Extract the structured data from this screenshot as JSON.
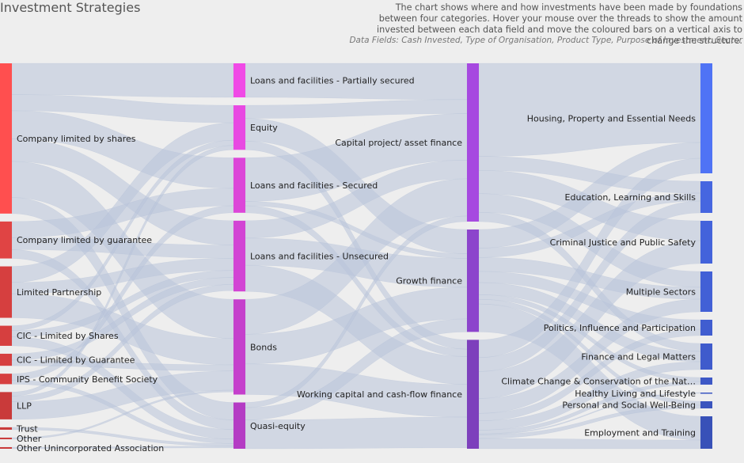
{
  "title": "Investment Strategies",
  "description": "The chart shows where and how investments have been made by foundations between four categories. Hover your mouse over the threads to show the amount invested between each data field and move the coloured bars on a vertical axis to change the structure.",
  "data_fields": "Data Fields: Cash Invested, Type of Organisation, Product Type, Purpose of Investment, Sector",
  "chart_data": {
    "type": "sankey",
    "columns": [
      {
        "name": "Type of Organisation",
        "nodes": [
          {
            "label": "Company limited by shares",
            "value": 187,
            "color": "#ff4f4f"
          },
          {
            "label": "Company limited by guarantee",
            "value": 46,
            "color": "#e04444"
          },
          {
            "label": "Limited Partnership",
            "value": 64,
            "color": "#d63f3f"
          },
          {
            "label": "CIC - Limited by Shares",
            "value": 25,
            "color": "#d63f3f"
          },
          {
            "label": "CIC - Limited by Guarantee",
            "value": 15,
            "color": "#d63f3f"
          },
          {
            "label": "IPS - Community Benefit Society",
            "value": 13,
            "color": "#d63f3f"
          },
          {
            "label": "LLP",
            "value": 34,
            "color": "#c93a3a"
          },
          {
            "label": "Trust",
            "value": 3,
            "color": "#c93a3a"
          },
          {
            "label": "Other",
            "value": 2,
            "color": "#c93a3a"
          },
          {
            "label": "Other Unincorporated Association",
            "value": 2,
            "color": "#c93a3a"
          }
        ]
      },
      {
        "name": "Product Type",
        "nodes": [
          {
            "label": "Loans and facilities - Partially secured",
            "value": 39,
            "color": "#f04ae6"
          },
          {
            "label": "Equity",
            "value": 51,
            "color": "#e849e2"
          },
          {
            "label": "Loans and facilities - Secured",
            "value": 63,
            "color": "#dc46d8"
          },
          {
            "label": "Loans and facilities - Unsecured",
            "value": 81,
            "color": "#d244d4"
          },
          {
            "label": "Bonds",
            "value": 109,
            "color": "#c540cc"
          },
          {
            "label": "Quasi-equity",
            "value": 53,
            "color": "#b43cc4"
          }
        ]
      },
      {
        "name": "Purpose of Investment",
        "nodes": [
          {
            "label": "Capital project/ asset finance",
            "value": 170,
            "color": "#a649e0"
          },
          {
            "label": "Growth finance",
            "value": 110,
            "color": "#8c44cc"
          },
          {
            "label": "Working capital and cash-flow finance",
            "value": 117,
            "color": "#7d40bc"
          }
        ]
      },
      {
        "name": "Sector",
        "nodes": [
          {
            "label": "Housing, Property and Essential Needs",
            "value": 139,
            "color": "#4f73f5"
          },
          {
            "label": "Education, Learning and Skills",
            "value": 40,
            "color": "#4666e0"
          },
          {
            "label": "Criminal Justice and Public Safety",
            "value": 54,
            "color": "#4363db"
          },
          {
            "label": "Multiple Sectors",
            "value": 51,
            "color": "#4260d6"
          },
          {
            "label": "Politics, Influence and Participation",
            "value": 20,
            "color": "#405dd0"
          },
          {
            "label": "Finance and Legal Matters",
            "value": 33,
            "color": "#3f5bcc"
          },
          {
            "label": "Climate Change & Conservation of the Nat…",
            "value": 9,
            "color": "#3d58c6"
          },
          {
            "label": "Healthy Living and Lifestyle",
            "value": 1,
            "color": "#3b56c2"
          },
          {
            "label": "Personal and Social Well-Being",
            "value": 9,
            "color": "#3a54be"
          },
          {
            "label": "Employment and Training",
            "value": 41,
            "color": "#3851b8"
          }
        ]
      }
    ],
    "links": [
      {
        "source": [
          0,
          0
        ],
        "target": [
          1,
          0
        ],
        "value": 39
      },
      {
        "source": [
          0,
          0
        ],
        "target": [
          1,
          1
        ],
        "value": 20
      },
      {
        "source": [
          0,
          0
        ],
        "target": [
          1,
          2
        ],
        "value": 35
      },
      {
        "source": [
          0,
          0
        ],
        "target": [
          1,
          3
        ],
        "value": 28
      },
      {
        "source": [
          0,
          0
        ],
        "target": [
          1,
          4
        ],
        "value": 45
      },
      {
        "source": [
          0,
          0
        ],
        "target": [
          1,
          5
        ],
        "value": 20
      },
      {
        "source": [
          0,
          1
        ],
        "target": [
          1,
          2
        ],
        "value": 20
      },
      {
        "source": [
          0,
          1
        ],
        "target": [
          1,
          3
        ],
        "value": 15
      },
      {
        "source": [
          0,
          1
        ],
        "target": [
          1,
          5
        ],
        "value": 11
      },
      {
        "source": [
          0,
          2
        ],
        "target": [
          1,
          1
        ],
        "value": 20
      },
      {
        "source": [
          0,
          2
        ],
        "target": [
          1,
          3
        ],
        "value": 14
      },
      {
        "source": [
          0,
          2
        ],
        "target": [
          1,
          4
        ],
        "value": 30
      },
      {
        "source": [
          0,
          3
        ],
        "target": [
          1,
          1
        ],
        "value": 6
      },
      {
        "source": [
          0,
          3
        ],
        "target": [
          1,
          3
        ],
        "value": 8
      },
      {
        "source": [
          0,
          3
        ],
        "target": [
          1,
          5
        ],
        "value": 11
      },
      {
        "source": [
          0,
          4
        ],
        "target": [
          1,
          3
        ],
        "value": 8
      },
      {
        "source": [
          0,
          4
        ],
        "target": [
          1,
          4
        ],
        "value": 7
      },
      {
        "source": [
          0,
          5
        ],
        "target": [
          1,
          2
        ],
        "value": 8
      },
      {
        "source": [
          0,
          5
        ],
        "target": [
          1,
          5
        ],
        "value": 5
      },
      {
        "source": [
          0,
          6
        ],
        "target": [
          1,
          1
        ],
        "value": 5
      },
      {
        "source": [
          0,
          6
        ],
        "target": [
          1,
          3
        ],
        "value": 7
      },
      {
        "source": [
          0,
          6
        ],
        "target": [
          1,
          4
        ],
        "value": 22
      },
      {
        "source": [
          0,
          7
        ],
        "target": [
          1,
          5
        ],
        "value": 3
      },
      {
        "source": [
          0,
          8
        ],
        "target": [
          1,
          4
        ],
        "value": 2
      },
      {
        "source": [
          0,
          9
        ],
        "target": [
          1,
          5
        ],
        "value": 2
      },
      {
        "source": [
          1,
          0
        ],
        "target": [
          2,
          0
        ],
        "value": 39
      },
      {
        "source": [
          1,
          1
        ],
        "target": [
          2,
          0
        ],
        "value": 15
      },
      {
        "source": [
          1,
          1
        ],
        "target": [
          2,
          1
        ],
        "value": 26
      },
      {
        "source": [
          1,
          1
        ],
        "target": [
          2,
          2
        ],
        "value": 10
      },
      {
        "source": [
          1,
          2
        ],
        "target": [
          2,
          0
        ],
        "value": 50
      },
      {
        "source": [
          1,
          2
        ],
        "target": [
          2,
          1
        ],
        "value": 5
      },
      {
        "source": [
          1,
          2
        ],
        "target": [
          2,
          2
        ],
        "value": 8
      },
      {
        "source": [
          1,
          3
        ],
        "target": [
          2,
          0
        ],
        "value": 20
      },
      {
        "source": [
          1,
          3
        ],
        "target": [
          2,
          1
        ],
        "value": 31
      },
      {
        "source": [
          1,
          3
        ],
        "target": [
          2,
          2
        ],
        "value": 30
      },
      {
        "source": [
          1,
          4
        ],
        "target": [
          2,
          0
        ],
        "value": 40
      },
      {
        "source": [
          1,
          4
        ],
        "target": [
          2,
          1
        ],
        "value": 34
      },
      {
        "source": [
          1,
          4
        ],
        "target": [
          2,
          2
        ],
        "value": 35
      },
      {
        "source": [
          1,
          5
        ],
        "target": [
          2,
          0
        ],
        "value": 6
      },
      {
        "source": [
          1,
          5
        ],
        "target": [
          2,
          1
        ],
        "value": 14
      },
      {
        "source": [
          1,
          5
        ],
        "target": [
          2,
          2
        ],
        "value": 33
      },
      {
        "source": [
          2,
          0
        ],
        "target": [
          3,
          0
        ],
        "value": 100
      },
      {
        "source": [
          2,
          0
        ],
        "target": [
          3,
          1
        ],
        "value": 15
      },
      {
        "source": [
          2,
          0
        ],
        "target": [
          3,
          2
        ],
        "value": 25
      },
      {
        "source": [
          2,
          0
        ],
        "target": [
          3,
          3
        ],
        "value": 20
      },
      {
        "source": [
          2,
          0
        ],
        "target": [
          3,
          5
        ],
        "value": 10
      },
      {
        "source": [
          2,
          1
        ],
        "target": [
          3,
          0
        ],
        "value": 20
      },
      {
        "source": [
          2,
          1
        ],
        "target": [
          3,
          1
        ],
        "value": 10
      },
      {
        "source": [
          2,
          1
        ],
        "target": [
          3,
          3
        ],
        "value": 15
      },
      {
        "source": [
          2,
          1
        ],
        "target": [
          3,
          4
        ],
        "value": 12
      },
      {
        "source": [
          2,
          1
        ],
        "target": [
          3,
          5
        ],
        "value": 13
      },
      {
        "source": [
          2,
          1
        ],
        "target": [
          3,
          6
        ],
        "value": 5
      },
      {
        "source": [
          2,
          1
        ],
        "target": [
          3,
          8
        ],
        "value": 5
      },
      {
        "source": [
          2,
          1
        ],
        "target": [
          3,
          9
        ],
        "value": 30
      },
      {
        "source": [
          2,
          2
        ],
        "target": [
          3,
          0
        ],
        "value": 19
      },
      {
        "source": [
          2,
          2
        ],
        "target": [
          3,
          1
        ],
        "value": 15
      },
      {
        "source": [
          2,
          2
        ],
        "target": [
          3,
          2
        ],
        "value": 29
      },
      {
        "source": [
          2,
          2
        ],
        "target": [
          3,
          3
        ],
        "value": 16
      },
      {
        "source": [
          2,
          2
        ],
        "target": [
          3,
          4
        ],
        "value": 8
      },
      {
        "source": [
          2,
          2
        ],
        "target": [
          3,
          5
        ],
        "value": 10
      },
      {
        "source": [
          2,
          2
        ],
        "target": [
          3,
          6
        ],
        "value": 4
      },
      {
        "source": [
          2,
          2
        ],
        "target": [
          3,
          7
        ],
        "value": 1
      },
      {
        "source": [
          2,
          2
        ],
        "target": [
          3,
          8
        ],
        "value": 4
      },
      {
        "source": [
          2,
          2
        ],
        "target": [
          3,
          9
        ],
        "value": 11
      }
    ]
  }
}
